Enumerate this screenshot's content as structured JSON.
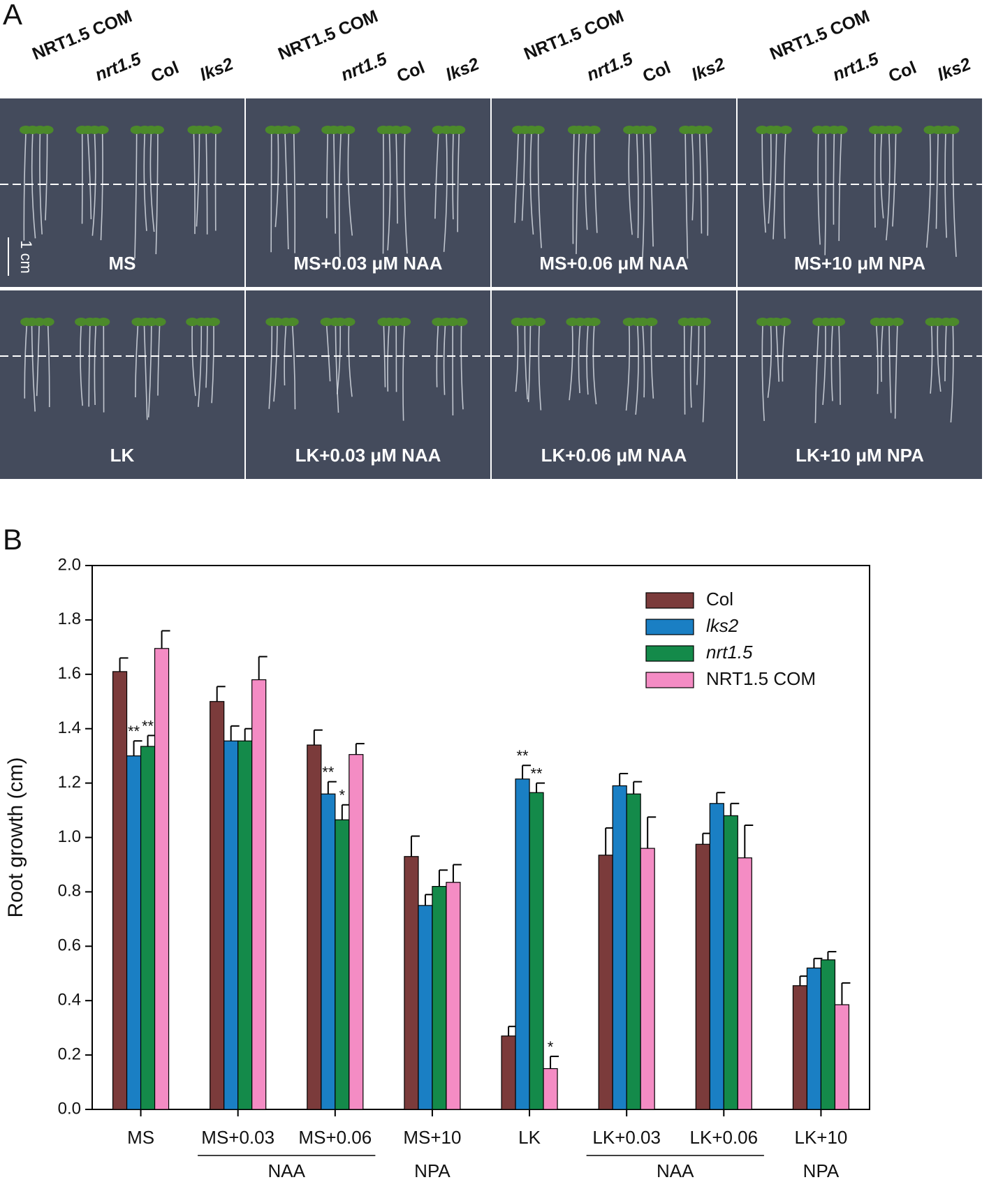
{
  "panel_labels": [
    "A",
    "B"
  ],
  "panel_a": {
    "genotypes": [
      "NRT1.5 COM",
      "nrt1.5",
      "Col",
      "lks2"
    ],
    "conditions": [
      [
        "MS",
        "MS+0.03 μM NAA",
        "MS+0.06 μM NAA",
        "MS+10 μM NPA"
      ],
      [
        "LK",
        "LK+0.03 μM NAA",
        "LK+0.06 μM NAA",
        "LK+10 μM NPA"
      ]
    ],
    "scale_bar": "1 cm"
  },
  "chart_data": {
    "type": "bar",
    "y_label": "Root growth (cm)",
    "categories": [
      "MS",
      "MS+0.03",
      "MS+0.06",
      "MS+10",
      "LK",
      "LK+0.03",
      "LK+0.06",
      "LK+10"
    ],
    "category_groups": [
      null,
      "NAA",
      "NAA",
      "NPA",
      null,
      "NAA",
      "NAA",
      "NPA"
    ],
    "series": [
      {
        "name": "Col",
        "color": "#7b3b3b",
        "values": [
          1.61,
          1.5,
          1.34,
          0.93,
          0.27,
          0.935,
          0.975,
          0.455
        ],
        "errors": [
          0.05,
          0.055,
          0.055,
          0.075,
          0.035,
          0.1,
          0.04,
          0.035
        ],
        "significance": [
          null,
          null,
          null,
          null,
          null,
          null,
          null,
          null
        ]
      },
      {
        "name": "lks2",
        "color": "#1a7fc4",
        "values": [
          1.3,
          1.355,
          1.16,
          0.75,
          1.215,
          1.19,
          1.125,
          0.52
        ],
        "errors": [
          0.055,
          0.055,
          0.045,
          0.04,
          0.05,
          0.045,
          0.04,
          0.035
        ],
        "significance": [
          "**",
          null,
          "**",
          null,
          "**",
          null,
          null,
          null
        ]
      },
      {
        "name": "nrt1.5",
        "color": "#148a4a",
        "values": [
          1.335,
          1.355,
          1.065,
          0.82,
          1.165,
          1.16,
          1.08,
          0.55
        ],
        "errors": [
          0.04,
          0.045,
          0.055,
          0.06,
          0.035,
          0.045,
          0.045,
          0.03
        ],
        "significance": [
          "**",
          null,
          "*",
          null,
          "**",
          null,
          null,
          null
        ]
      },
      {
        "name": "NRT1.5 COM",
        "color": "#f48cc4",
        "values": [
          1.695,
          1.58,
          1.305,
          0.835,
          0.15,
          0.96,
          0.925,
          0.385
        ],
        "errors": [
          0.065,
          0.085,
          0.04,
          0.065,
          0.045,
          0.115,
          0.12,
          0.08
        ],
        "significance": [
          null,
          null,
          null,
          null,
          "*",
          null,
          null,
          null
        ]
      }
    ],
    "ylim": [
      0,
      2.0
    ],
    "yticks": [
      {
        "value": 0,
        "label": "0.0"
      },
      {
        "value": 0.2,
        "label": "0.2"
      },
      {
        "value": 0.4,
        "label": "0.4"
      },
      {
        "value": 0.6,
        "label": "0.6"
      },
      {
        "value": 0.8,
        "label": "0.8"
      },
      {
        "value": 1.0,
        "label": "1.0"
      },
      {
        "value": 1.2,
        "label": "1.2"
      },
      {
        "value": 1.4,
        "label": "1.4"
      },
      {
        "value": 1.6,
        "label": "1.6"
      },
      {
        "value": 1.8,
        "label": "1.8"
      },
      {
        "value": 2.0,
        "label": "2.0"
      }
    ],
    "legend_position": "upper right",
    "italic_series": [
      "lks2",
      "nrt1.5"
    ]
  }
}
